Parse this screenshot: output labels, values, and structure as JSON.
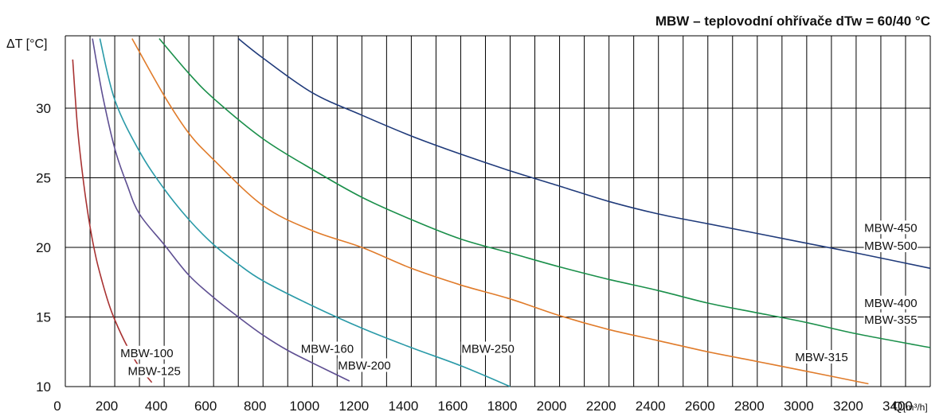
{
  "chart_data": {
    "type": "line",
    "title": "MBW – teplovodní ohřívače dTw = 60/40 °C",
    "ylabel": "ΔT [°C]",
    "xlabel": "Q",
    "xlabel_unit": "[m³/h]",
    "xlim": [
      0,
      3500
    ],
    "ylim": [
      10,
      35
    ],
    "x_ticks": [
      0,
      200,
      400,
      600,
      800,
      1000,
      1200,
      1400,
      1600,
      1800,
      2000,
      2200,
      2400,
      2600,
      2800,
      3000,
      3200,
      3400
    ],
    "x_tick_labels": [
      "0",
      "200",
      "400",
      "600",
      "800",
      "1000",
      "1200",
      "1400",
      "1600",
      "1800",
      "2000",
      "2200",
      "2400",
      "2600",
      "2800",
      "3000",
      "3200",
      "3400"
    ],
    "y_ticks": [
      10,
      15,
      20,
      25,
      30
    ],
    "y_tick_labels": [
      "10",
      "15",
      "20",
      "25",
      "30"
    ],
    "grid": true,
    "series": [
      {
        "color": "#a83232",
        "labels": [
          "MBW-100",
          "MBW-125"
        ],
        "x": [
          30,
          50,
          75,
          100,
          125,
          150,
          175,
          200,
          250,
          300,
          350
        ],
        "y": [
          33.5,
          28.5,
          24.5,
          21.5,
          19.2,
          17.5,
          16.0,
          14.8,
          12.9,
          11.4,
          10.3
        ]
      },
      {
        "color": "#5e4f92",
        "labels": [
          "MBW-160",
          "MBW-200"
        ],
        "x": [
          110,
          150,
          200,
          250,
          300,
          400,
          500,
          600,
          700,
          800,
          900,
          1000,
          1150
        ],
        "y": [
          35.0,
          31.0,
          27.1,
          24.5,
          22.4,
          20.2,
          18.0,
          16.4,
          15.0,
          13.7,
          12.6,
          11.7,
          10.4
        ]
      },
      {
        "color": "#2a9aa8",
        "labels": [
          "MBW-250"
        ],
        "x": [
          140,
          200,
          300,
          400,
          500,
          600,
          700,
          800,
          1000,
          1200,
          1400,
          1600,
          1800
        ],
        "y": [
          35.0,
          30.6,
          26.9,
          24.2,
          22.0,
          20.2,
          18.8,
          17.6,
          15.8,
          14.2,
          12.8,
          11.5,
          10.0
        ]
      },
      {
        "color": "#e07b2a",
        "labels": [
          "MBW-315"
        ],
        "x": [
          270,
          400,
          500,
          600,
          800,
          1000,
          1200,
          1400,
          1600,
          1800,
          2000,
          2200,
          2400,
          2600,
          2800,
          3000,
          3250
        ],
        "y": [
          35.0,
          30.9,
          28.2,
          26.3,
          23.0,
          21.2,
          20.0,
          18.5,
          17.3,
          16.3,
          15.1,
          14.1,
          13.3,
          12.5,
          11.8,
          11.1,
          10.2
        ]
      },
      {
        "color": "#1a8f4a",
        "labels": [
          "MBW-400",
          "MBW-355"
        ],
        "x": [
          380,
          500,
          600,
          800,
          1000,
          1200,
          1400,
          1600,
          1800,
          2000,
          2200,
          2400,
          2600,
          2800,
          3000,
          3200,
          3500
        ],
        "y": [
          35.0,
          32.5,
          30.7,
          27.8,
          25.6,
          23.6,
          22.0,
          20.6,
          19.6,
          18.6,
          17.7,
          16.9,
          16.0,
          15.3,
          14.6,
          13.8,
          12.8
        ]
      },
      {
        "color": "#1f3a7a",
        "labels": [
          "MBW-450",
          "MBW-500"
        ],
        "x": [
          700,
          800,
          1000,
          1200,
          1400,
          1600,
          1800,
          2000,
          2200,
          2400,
          2600,
          2800,
          3000,
          3200,
          3500
        ],
        "y": [
          35.0,
          33.6,
          31.1,
          29.5,
          28.0,
          26.7,
          25.5,
          24.4,
          23.3,
          22.4,
          21.7,
          21.0,
          20.3,
          19.6,
          18.5
        ]
      }
    ],
    "annotations": [
      {
        "text": "MBW-100",
        "x": 330,
        "y": 12.3
      },
      {
        "text": "MBW-125",
        "x": 360,
        "y": 11.0
      },
      {
        "text": "MBW-160",
        "x": 1060,
        "y": 12.6
      },
      {
        "text": "MBW-200",
        "x": 1210,
        "y": 11.4
      },
      {
        "text": "MBW-250",
        "x": 1710,
        "y": 12.6
      },
      {
        "text": "MBW-315",
        "x": 3060,
        "y": 12.0
      },
      {
        "text": "MBW-400",
        "x": 3340,
        "y": 15.9
      },
      {
        "text": "MBW-355",
        "x": 3340,
        "y": 14.7
      },
      {
        "text": "MBW-450",
        "x": 3340,
        "y": 21.3
      },
      {
        "text": "MBW-500",
        "x": 3340,
        "y": 20.0
      }
    ]
  }
}
